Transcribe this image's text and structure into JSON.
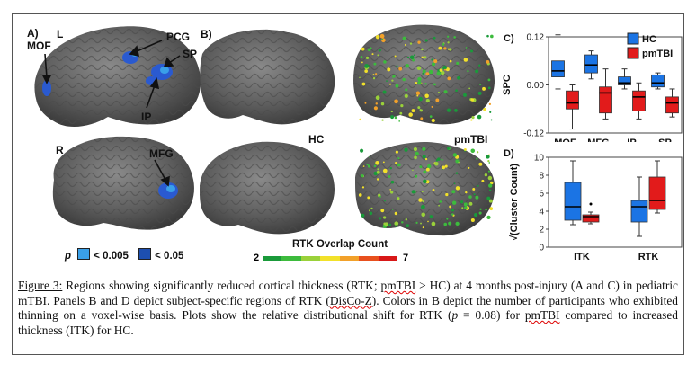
{
  "panels": {
    "a_label": "A)",
    "a_hemi_left": "L",
    "a_hemi_right": "R",
    "a_regions": [
      "MOF",
      "PCG",
      "SP",
      "IP",
      "MFG"
    ],
    "b_label": "B)",
    "hc_label": "HC",
    "pmtbi_label": "pmTBI",
    "sig_p": "p",
    "sig_levels": [
      "< 0.005",
      "< 0.05"
    ],
    "sig_colors": [
      "#3aa0e8",
      "#1d4fb0"
    ],
    "overlap_title": "RTK Overlap Count",
    "overlap_min": "2",
    "overlap_max": "7",
    "overlap_colors": [
      "#1a9a3a",
      "#3dbb3d",
      "#9ad13a",
      "#f2e12a",
      "#f2a12a",
      "#e8501e",
      "#d81818"
    ]
  },
  "chart_data": [
    {
      "type": "boxplot",
      "panel": "C)",
      "ylabel": "SPC",
      "categories": [
        "MOF",
        "MFG",
        "IP",
        "SP"
      ],
      "yticks": [
        "0.12",
        "0.00",
        "-0.12"
      ],
      "ylim": [
        -0.12,
        0.12
      ],
      "legend": [
        "HC",
        "pmTBI"
      ],
      "legend_placement": "top-right",
      "colors": {
        "HC": "#1b74e4",
        "pmTBI": "#e21b1b"
      },
      "series": [
        {
          "name": "HC",
          "boxes": [
            {
              "min": -0.01,
              "q1": 0.02,
              "median": 0.035,
              "q3": 0.06,
              "max": 0.125
            },
            {
              "min": 0.015,
              "q1": 0.03,
              "median": 0.05,
              "q3": 0.075,
              "max": 0.085
            },
            {
              "min": -0.01,
              "q1": 0.0,
              "median": 0.005,
              "q3": 0.02,
              "max": 0.04
            },
            {
              "min": -0.01,
              "q1": -0.005,
              "median": 0.005,
              "q3": 0.025,
              "max": 0.03
            }
          ]
        },
        {
          "name": "pmTBI",
          "boxes": [
            {
              "min": -0.11,
              "q1": -0.06,
              "median": -0.045,
              "q3": -0.015,
              "max": 0.0
            },
            {
              "min": -0.085,
              "q1": -0.07,
              "median": -0.02,
              "q3": -0.005,
              "max": 0.04
            },
            {
              "min": -0.085,
              "q1": -0.065,
              "median": -0.03,
              "q3": -0.015,
              "max": 0.005
            },
            {
              "min": -0.08,
              "q1": -0.07,
              "median": -0.045,
              "q3": -0.03,
              "max": -0.01
            }
          ]
        }
      ]
    },
    {
      "type": "boxplot",
      "panel": "D)",
      "ylabel": "√(Cluster Count)",
      "categories": [
        "ITK",
        "RTK"
      ],
      "yticks": [
        "10",
        "8",
        "6",
        "4",
        "2",
        "0"
      ],
      "ylim": [
        0,
        10
      ],
      "colors": {
        "HC": "#1b74e4",
        "pmTBI": "#e21b1b"
      },
      "series": [
        {
          "name": "HC",
          "boxes": [
            {
              "min": 2.5,
              "q1": 3.0,
              "median": 4.5,
              "q3": 7.2,
              "max": 9.6
            },
            {
              "min": 1.2,
              "q1": 2.8,
              "median": 4.5,
              "q3": 5.2,
              "max": 7.8
            }
          ]
        },
        {
          "name": "pmTBI",
          "boxes": [
            {
              "min": 2.6,
              "q1": 2.8,
              "median": 3.4,
              "q3": 3.6,
              "max": 3.9,
              "outlier": 4.8
            },
            {
              "min": 3.8,
              "q1": 4.2,
              "median": 5.2,
              "q3": 7.8,
              "max": 9.6
            }
          ]
        }
      ]
    }
  ],
  "caption": {
    "fig": "Figure 3:",
    "t1": " Regions showing significantly reduced cortical thickness (RTK; ",
    "pm1": "pmTBI",
    "t2": " > HC) at 4 months post-injury (A and C) in pediatric mTBI. Panels B and D depict subject-specific regions of RTK (",
    "disco": "DisCo-Z",
    "t3": "). Colors in B depict the number of participants who exhibited thinning on a voxel-wise basis. Plots show the relative distributional shift for RTK (",
    "pv": "p",
    "t4": " = 0.08) for ",
    "pm2": "pmTBI",
    "t5": " compared to increased thickness (ITK) for HC."
  }
}
